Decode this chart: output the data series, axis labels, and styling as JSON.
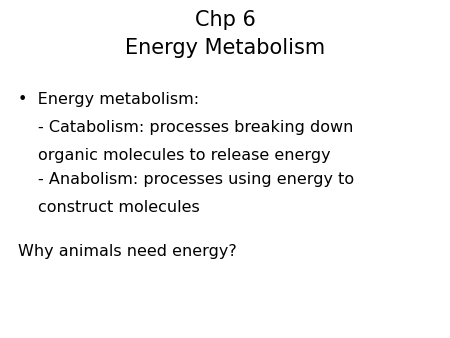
{
  "title_line1": "Chp 6",
  "title_line2": "Energy Metabolism",
  "bullet_text": "Energy metabolism:",
  "sub1_line1": "- Catabolism: processes breaking down",
  "sub1_line2": "organic molecules to release energy",
  "sub2_line1": "- Anabolism: processes using energy to",
  "sub2_line2": "construct molecules",
  "footer": "Why animals need energy?",
  "bg_color": "#ffffff",
  "text_color": "#000000",
  "title_fontsize": 15,
  "body_fontsize": 11.5,
  "bullet_char": "•"
}
